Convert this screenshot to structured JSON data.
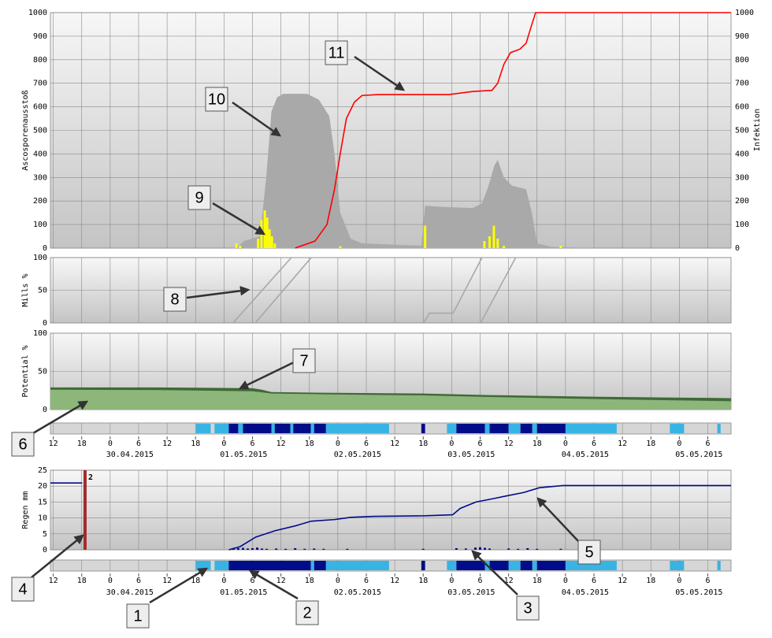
{
  "chart_data": [
    {
      "type": "layered",
      "y_label": "Ascosporenausstoß",
      "y2_label": "Infektion",
      "ylim": [
        0,
        1000
      ],
      "yticks": [
        0,
        100,
        200,
        300,
        400,
        500,
        600,
        700,
        800,
        900,
        1000
      ],
      "y2lim": [
        0,
        1000
      ],
      "y2ticks": [
        0,
        100,
        200,
        300,
        400,
        500,
        600,
        700,
        800,
        900,
        1000
      ],
      "grid": true,
      "layers": [
        {
          "type": "area",
          "color": "#a9a9a9",
          "x": [
            26.6,
            28.2,
            31.6,
            32.9,
            34,
            35.2,
            36.5,
            41.5,
            44,
            46.2,
            47.3,
            48.5,
            50.7,
            53.1,
            65.6,
            66.4,
            69.8,
            76.4,
            78.4,
            79.7,
            81,
            81.7,
            83,
            84.7,
            87.7,
            88.9,
            90,
            93,
            103
          ],
          "values": [
            0,
            30,
            50,
            300,
            580,
            640,
            655,
            655,
            630,
            560,
            400,
            150,
            40,
            20,
            10,
            180,
            175,
            170,
            190,
            260,
            350,
            375,
            300,
            265,
            250,
            150,
            20,
            5,
            0
          ]
        },
        {
          "type": "bar",
          "color": "#ffff00",
          "x": [
            26.6,
            27.4,
            31.2,
            31.9,
            32.6,
            33.1,
            33.6,
            34.1,
            34.7,
            48.5,
            66.4,
            78.9,
            80,
            80.9,
            81.7,
            83,
            95
          ],
          "values": [
            20,
            10,
            40,
            120,
            160,
            130,
            80,
            50,
            20,
            8,
            95,
            30,
            50,
            95,
            40,
            10,
            10
          ]
        },
        {
          "type": "line",
          "color": "#ff0000",
          "axis": "y2",
          "x": [
            39,
            43.2,
            45.7,
            47.3,
            48.5,
            49.8,
            51.5,
            53.1,
            56.5,
            71.4,
            76.4,
            80.5,
            81.7,
            83,
            84.4,
            86.4,
            87.7,
            88.9,
            89.7,
            130.9
          ],
          "values": [
            0,
            30,
            100,
            250,
            400,
            550,
            620,
            648,
            652,
            652,
            665,
            670,
            700,
            780,
            830,
            845,
            870,
            950,
            1000,
            1000
          ]
        }
      ]
    },
    {
      "type": "layered",
      "y_label": "Mills %",
      "ylim": [
        0,
        100
      ],
      "yticks": [
        0,
        50,
        100
      ],
      "grid": true,
      "layers": [
        {
          "type": "line",
          "color": "#a8a8a8",
          "x": [
            25.9,
            38.2
          ],
          "values": [
            0,
            100
          ]
        },
        {
          "type": "line",
          "color": "#a8a8a8",
          "x": [
            30.6,
            42.4
          ],
          "values": [
            0,
            100
          ]
        },
        {
          "type": "line",
          "color": "#a8a8a8",
          "x": [
            66.1,
            67.3,
            72.3,
            78.4
          ],
          "values": [
            0,
            15,
            15,
            100
          ]
        },
        {
          "type": "line",
          "color": "#a8a8a8",
          "x": [
            78.1,
            85.5
          ],
          "values": [
            0,
            100
          ]
        }
      ]
    },
    {
      "type": "layered",
      "y_label": "Potential %",
      "ylim": [
        0,
        100
      ],
      "yticks": [
        0,
        50,
        100
      ],
      "grid": true,
      "layers": [
        {
          "type": "area",
          "color": "#3f6a36",
          "x": [
            -12.6,
            10,
            30,
            32,
            34,
            45,
            66,
            80,
            100,
            115,
            130.9
          ],
          "values": [
            29,
            29,
            28,
            26,
            23,
            22,
            21,
            19,
            17,
            16,
            15
          ]
        },
        {
          "type": "area",
          "color": "#8db67b",
          "x": [
            -12.6,
            10,
            30,
            32,
            34,
            45,
            66,
            80,
            100,
            115,
            130.9
          ],
          "values": [
            26,
            25.5,
            24,
            22.5,
            21,
            20,
            18.5,
            16.5,
            14,
            12.5,
            11
          ]
        }
      ]
    },
    {
      "type": "strip",
      "colors": {
        "wet": "#37b4e4",
        "rain": "#000c8a"
      },
      "segments": [
        [
          18.1,
          21.2,
          "wet"
        ],
        [
          22,
          25,
          "wet"
        ],
        [
          25,
          27,
          "rain"
        ],
        [
          27,
          28,
          "wet"
        ],
        [
          28,
          34,
          "rain"
        ],
        [
          34,
          34.7,
          "wet"
        ],
        [
          34.7,
          38,
          "rain"
        ],
        [
          38,
          38.6,
          "wet"
        ],
        [
          38.6,
          42.3,
          "rain"
        ],
        [
          42.3,
          43,
          "wet"
        ],
        [
          43,
          45.5,
          "rain"
        ],
        [
          45.5,
          58.8,
          "wet"
        ],
        [
          65.6,
          66.4,
          "rain"
        ],
        [
          71,
          73,
          "wet"
        ],
        [
          73,
          79,
          "rain"
        ],
        [
          79,
          80,
          "wet"
        ],
        [
          80,
          84,
          "rain"
        ],
        [
          84,
          86.5,
          "wet"
        ],
        [
          86.5,
          89,
          "rain"
        ],
        [
          89,
          90,
          "wet"
        ],
        [
          90,
          96,
          "rain"
        ],
        [
          96,
          106.8,
          "wet"
        ],
        [
          118,
          121,
          "wet"
        ],
        [
          128,
          128.7,
          "wet"
        ]
      ]
    },
    {
      "type": "time-axis",
      "xlim": [
        -12.6,
        130.9
      ],
      "xticks": [
        {
          "value": -12,
          "label": "12"
        },
        {
          "value": -6,
          "label": "18"
        },
        0,
        6,
        12,
        18,
        {
          "value": 24,
          "label": "0"
        },
        {
          "value": 30,
          "label": "6"
        },
        {
          "value": 36,
          "label": "12"
        },
        {
          "value": 42,
          "label": "18"
        },
        {
          "value": 48,
          "label": "0"
        },
        {
          "value": 54,
          "label": "6"
        },
        {
          "value": 60,
          "label": "12"
        },
        {
          "value": 66,
          "label": "18"
        },
        {
          "value": 72,
          "label": "0"
        },
        {
          "value": 78,
          "label": "6"
        },
        {
          "value": 84,
          "label": "12"
        },
        {
          "value": 90,
          "label": "18"
        },
        {
          "value": 96,
          "label": "0"
        },
        {
          "value": 102,
          "label": "6"
        },
        {
          "value": 108,
          "label": "12"
        },
        {
          "value": 114,
          "label": "18"
        },
        {
          "value": 120,
          "label": "0"
        },
        {
          "value": 126,
          "label": "6"
        }
      ],
      "dates": [
        {
          "value": 0,
          "label": "30.04.2015"
        },
        {
          "value": 24,
          "label": "01.05.2015"
        },
        {
          "value": 48,
          "label": "02.05.2015"
        },
        {
          "value": 72,
          "label": "03.05.2015"
        },
        {
          "value": 96,
          "label": "04.05.2015"
        },
        {
          "value": 120,
          "label": "05.05.2015"
        }
      ]
    },
    {
      "type": "layered",
      "y_label": "Regen mm",
      "ylim": [
        0,
        25
      ],
      "yticks": [
        0,
        5,
        10,
        15,
        20,
        25
      ],
      "grid": true,
      "layers": [
        {
          "type": "bar",
          "color": "#000c8a",
          "x": [
            26,
            27,
            28,
            29,
            30,
            31,
            32,
            33,
            35,
            37,
            39,
            41,
            43,
            45,
            50,
            66,
            73,
            75,
            77,
            78,
            79,
            80,
            84,
            86,
            88,
            90,
            95
          ],
          "values": [
            0.3,
            0.5,
            0.6,
            0.4,
            0.5,
            0.7,
            0.4,
            0.3,
            0.4,
            0.3,
            0.5,
            0.3,
            0.4,
            0.3,
            0.3,
            0.3,
            0.5,
            0.4,
            0.7,
            0.8,
            0.6,
            0.4,
            0.4,
            0.3,
            0.5,
            0.3,
            0.3
          ]
        },
        {
          "type": "line",
          "color": "#000c8a",
          "x": [
            -12.6,
            -5.9,
            null,
            25,
            27.4,
            30.7,
            34.8,
            39,
            42.4,
            47.3,
            50.7,
            55.6,
            66.4,
            72.2,
            73.8,
            77.1,
            80.5,
            83.8,
            87.2,
            90.5,
            95.5,
            130.9
          ],
          "values": [
            21,
            21,
            null,
            0,
            1,
            4,
            6,
            7.5,
            9,
            9.5,
            10.2,
            10.5,
            10.7,
            11,
            13,
            15,
            16,
            17,
            18,
            19.5,
            20.2,
            20.2
          ]
        },
        {
          "type": "marker",
          "color": "#a52a2a",
          "x": -5.3,
          "label": "2"
        }
      ]
    },
    {
      "type": "strip",
      "colors": {
        "wet": "#37b4e4",
        "rain": "#000c8a"
      },
      "segments": [
        [
          18.1,
          21.2,
          "wet"
        ],
        [
          22,
          25,
          "wet"
        ],
        [
          25,
          42.3,
          "rain"
        ],
        [
          42.3,
          43,
          "wet"
        ],
        [
          43,
          45.5,
          "rain"
        ],
        [
          45.5,
          58.8,
          "wet"
        ],
        [
          65.6,
          66.4,
          "rain"
        ],
        [
          71,
          73,
          "wet"
        ],
        [
          73,
          79,
          "rain"
        ],
        [
          79,
          80,
          "wet"
        ],
        [
          80,
          84,
          "rain"
        ],
        [
          84,
          86.5,
          "wet"
        ],
        [
          86.5,
          89,
          "rain"
        ],
        [
          89,
          90,
          "wet"
        ],
        [
          90,
          96,
          "rain"
        ],
        [
          96,
          106.8,
          "wet"
        ],
        [
          118,
          121,
          "wet"
        ],
        [
          128,
          128.7,
          "wet"
        ]
      ]
    }
  ],
  "callouts": [
    "1",
    "2",
    "3",
    "4",
    "5",
    "6",
    "7",
    "8",
    "9",
    "10",
    "11"
  ]
}
